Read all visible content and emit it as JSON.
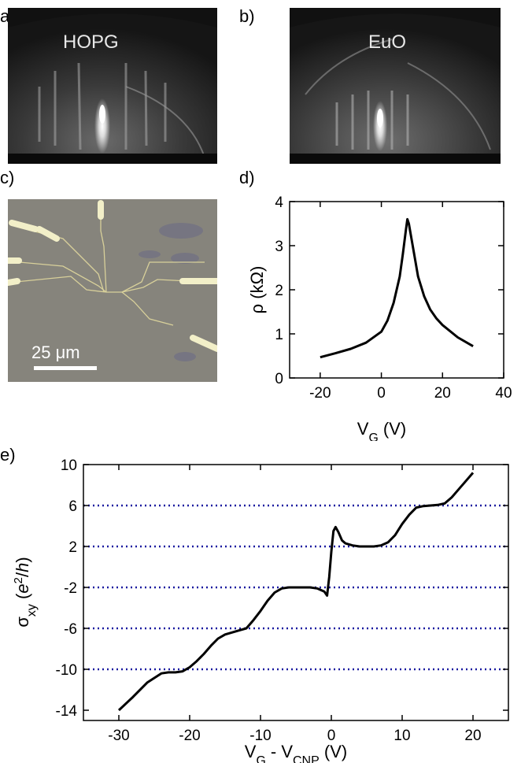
{
  "panels": {
    "a": {
      "letter": "a)",
      "label": "HOPG"
    },
    "b": {
      "letter": "b)",
      "label": "EuO"
    },
    "c": {
      "letter": "c)",
      "scale_bar": "25 μm"
    },
    "d": {
      "letter": "d)"
    },
    "e": {
      "letter": "e)"
    }
  },
  "chart_data": [
    {
      "panel": "d",
      "type": "line",
      "xlabel": "V_G (V)",
      "ylabel": "ρ (kΩ)",
      "xlim": [
        -30,
        40
      ],
      "ylim": [
        0,
        4
      ],
      "xticks": [
        -20,
        0,
        20,
        40
      ],
      "yticks": [
        0,
        1,
        2,
        3,
        4
      ],
      "grid": false,
      "x": [
        -20,
        -15,
        -10,
        -5,
        0,
        2,
        4,
        6,
        7,
        8,
        8.5,
        9,
        10,
        11,
        12,
        14,
        16,
        18,
        20,
        25,
        30
      ],
      "y": [
        0.47,
        0.56,
        0.66,
        0.8,
        1.05,
        1.3,
        1.7,
        2.3,
        2.8,
        3.35,
        3.6,
        3.5,
        3.1,
        2.7,
        2.3,
        1.85,
        1.55,
        1.35,
        1.2,
        0.92,
        0.72
      ]
    },
    {
      "panel": "e",
      "type": "line",
      "xlabel": "V_G - V_CNP (V)",
      "ylabel": "σ_xy (e²/h)",
      "xlim": [
        -35,
        25
      ],
      "ylim": [
        -15,
        10
      ],
      "xticks": [
        -30,
        -20,
        -10,
        0,
        10,
        20
      ],
      "yticks": [
        -14,
        -10,
        -6,
        -2,
        2,
        6,
        10
      ],
      "grid": false,
      "reference_lines": [
        -10,
        -6,
        -2,
        2,
        6
      ],
      "reference_line_color": "#1a1aa0",
      "x": [
        -30,
        -28,
        -26,
        -24,
        -23,
        -22,
        -21,
        -20,
        -19,
        -18,
        -17,
        -16,
        -15,
        -14,
        -13,
        -12,
        -11,
        -10,
        -9,
        -8,
        -7,
        -6,
        -5,
        -4,
        -3,
        -2,
        -1,
        -0.6,
        -0.3,
        0,
        0.3,
        0.6,
        1,
        1.5,
        2,
        3,
        4,
        5,
        6,
        7,
        8,
        9,
        10,
        11,
        12,
        13,
        14,
        15,
        16,
        17,
        18,
        19,
        20
      ],
      "y": [
        -14,
        -12.7,
        -11.3,
        -10.4,
        -10.3,
        -10.3,
        -10.2,
        -9.8,
        -9.2,
        -8.5,
        -7.7,
        -7.0,
        -6.6,
        -6.4,
        -6.2,
        -6.0,
        -5.2,
        -4.3,
        -3.3,
        -2.5,
        -2.1,
        -2.0,
        -2.0,
        -2.0,
        -2.0,
        -2.1,
        -2.4,
        -2.8,
        -1.0,
        1.5,
        3.5,
        3.9,
        3.4,
        2.6,
        2.3,
        2.1,
        2.0,
        2.0,
        2.0,
        2.1,
        2.4,
        3.1,
        4.2,
        5.1,
        5.8,
        5.95,
        6.0,
        6.05,
        6.2,
        6.8,
        7.6,
        8.4,
        9.2
      ]
    }
  ]
}
